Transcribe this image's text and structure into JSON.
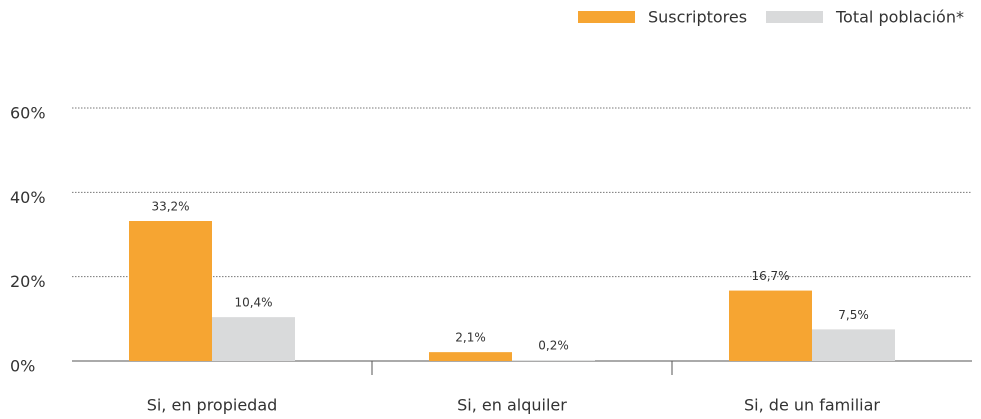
{
  "chart_data": {
    "type": "bar",
    "categories": [
      "Si, en propiedad",
      "Si, en alquiler",
      "Si, de un familiar"
    ],
    "series": [
      {
        "name": "Suscriptores",
        "color": "#f6a532",
        "values": [
          33.2,
          2.1,
          16.7
        ],
        "value_labels": [
          "33,2%",
          "2,1%",
          "16,7%"
        ]
      },
      {
        "name": "Total población*",
        "color": "#d9dadb",
        "values": [
          10.4,
          0.2,
          7.5
        ],
        "value_labels": [
          "10,4%",
          "0,2%",
          "7,5%"
        ]
      }
    ],
    "ylim": [
      0,
      60
    ],
    "yticks": [
      {
        "value": 0,
        "label": "0%"
      },
      {
        "value": 20,
        "label": "20%"
      },
      {
        "value": 40,
        "label": "40%"
      },
      {
        "value": 60,
        "label": "60%"
      }
    ],
    "grid": true,
    "legend": "top-right"
  }
}
